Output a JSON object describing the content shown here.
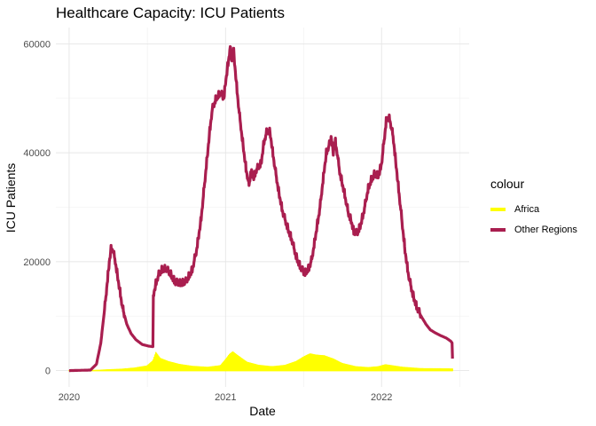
{
  "chart_data": {
    "type": "line",
    "title": "Healthcare Capacity: ICU Patients",
    "xlabel": "Date",
    "ylabel": "ICU Patients",
    "x_type": "date",
    "xlim": [
      "2019-12-01",
      "2022-07-25"
    ],
    "ylim": [
      -3000,
      63000
    ],
    "x_ticks": [
      "2020",
      "2021",
      "2022"
    ],
    "x_tick_dates": [
      "2020-01-01",
      "2021-01-01",
      "2022-01-01"
    ],
    "y_ticks": [
      0,
      20000,
      40000,
      60000
    ],
    "y_tick_labels": [
      "0",
      "20000",
      "40000",
      "60000"
    ],
    "grid": true,
    "legend_title": "colour",
    "legend_position": "right",
    "series": [
      {
        "name": "Africa",
        "color": "#FFFF00",
        "style": "filled-band",
        "points": [
          [
            "2020-01-01",
            0
          ],
          [
            "2020-02-20",
            0
          ],
          [
            "2020-03-10",
            30
          ],
          [
            "2020-04-01",
            120
          ],
          [
            "2020-05-01",
            200
          ],
          [
            "2020-06-01",
            380
          ],
          [
            "2020-07-01",
            700
          ],
          [
            "2020-07-15",
            1500
          ],
          [
            "2020-07-22",
            2800
          ],
          [
            "2020-08-01",
            1900
          ],
          [
            "2020-08-20",
            1400
          ],
          [
            "2020-09-15",
            950
          ],
          [
            "2020-10-15",
            650
          ],
          [
            "2020-11-20",
            500
          ],
          [
            "2020-12-20",
            750
          ],
          [
            "2021-01-01",
            1700
          ],
          [
            "2021-01-10",
            2500
          ],
          [
            "2021-01-18",
            2900
          ],
          [
            "2021-02-01",
            2200
          ],
          [
            "2021-02-20",
            1300
          ],
          [
            "2021-03-20",
            800
          ],
          [
            "2021-04-20",
            600
          ],
          [
            "2021-05-20",
            800
          ],
          [
            "2021-06-15",
            1400
          ],
          [
            "2021-07-05",
            2200
          ],
          [
            "2021-07-18",
            2600
          ],
          [
            "2021-08-01",
            2400
          ],
          [
            "2021-08-20",
            2300
          ],
          [
            "2021-09-10",
            1800
          ],
          [
            "2021-10-01",
            1100
          ],
          [
            "2021-11-01",
            600
          ],
          [
            "2021-12-01",
            450
          ],
          [
            "2021-12-25",
            600
          ],
          [
            "2022-01-10",
            900
          ],
          [
            "2022-01-25",
            750
          ],
          [
            "2022-02-20",
            500
          ],
          [
            "2022-04-01",
            300
          ],
          [
            "2022-06-16",
            250
          ]
        ]
      },
      {
        "name": "Other Regions",
        "color": "#A91E4F",
        "style": "line",
        "points": [
          [
            "2020-01-01",
            0
          ],
          [
            "2020-02-20",
            100
          ],
          [
            "2020-03-05",
            1200
          ],
          [
            "2020-03-15",
            5000
          ],
          [
            "2020-03-25",
            12000
          ],
          [
            "2020-04-04",
            20000
          ],
          [
            "2020-04-08",
            22300
          ],
          [
            "2020-04-12",
            22300
          ],
          [
            "2020-04-17",
            20500
          ],
          [
            "2020-04-25",
            16500
          ],
          [
            "2020-05-05",
            11500
          ],
          [
            "2020-05-15",
            8500
          ],
          [
            "2020-05-25",
            6800
          ],
          [
            "2020-06-05",
            5700
          ],
          [
            "2020-06-20",
            4800
          ],
          [
            "2020-07-05",
            4500
          ],
          [
            "2020-07-15",
            4400
          ],
          [
            "2020-07-16",
            13800
          ],
          [
            "2020-07-22",
            16000
          ],
          [
            "2020-07-28",
            17500
          ],
          [
            "2020-08-05",
            18500
          ],
          [
            "2020-08-15",
            18700
          ],
          [
            "2020-08-25",
            17800
          ],
          [
            "2020-09-05",
            16200
          ],
          [
            "2020-09-20",
            16000
          ],
          [
            "2020-10-01",
            16400
          ],
          [
            "2020-10-15",
            18500
          ],
          [
            "2020-10-25",
            22000
          ],
          [
            "2020-11-05",
            28000
          ],
          [
            "2020-11-15",
            36000
          ],
          [
            "2020-11-25",
            44000
          ],
          [
            "2020-12-01",
            48000
          ],
          [
            "2020-12-10",
            50000
          ],
          [
            "2020-12-20",
            51000
          ],
          [
            "2020-12-28",
            50000
          ],
          [
            "2021-01-01",
            53000
          ],
          [
            "2021-01-08",
            57000
          ],
          [
            "2021-01-12",
            59500
          ],
          [
            "2021-01-15",
            57000
          ],
          [
            "2021-01-20",
            58500
          ],
          [
            "2021-01-25",
            54000
          ],
          [
            "2021-02-01",
            48000
          ],
          [
            "2021-02-10",
            42000
          ],
          [
            "2021-02-18",
            37000
          ],
          [
            "2021-02-25",
            34000
          ],
          [
            "2021-03-01",
            36500
          ],
          [
            "2021-03-08",
            35500
          ],
          [
            "2021-03-15",
            37000
          ],
          [
            "2021-03-25",
            38000
          ],
          [
            "2021-04-01",
            42000
          ],
          [
            "2021-04-08",
            44000
          ],
          [
            "2021-04-15",
            43800
          ],
          [
            "2021-04-25",
            38000
          ],
          [
            "2021-05-05",
            33000
          ],
          [
            "2021-05-15",
            29000
          ],
          [
            "2021-05-25",
            26500
          ],
          [
            "2021-06-05",
            24000
          ],
          [
            "2021-06-15",
            21000
          ],
          [
            "2021-06-25",
            19000
          ],
          [
            "2021-07-05",
            17800
          ],
          [
            "2021-07-15",
            18800
          ],
          [
            "2021-07-22",
            20500
          ],
          [
            "2021-08-01",
            25500
          ],
          [
            "2021-08-10",
            30000
          ],
          [
            "2021-08-20",
            37000
          ],
          [
            "2021-08-25",
            40000
          ],
          [
            "2021-09-01",
            41500
          ],
          [
            "2021-09-05",
            43000
          ],
          [
            "2021-09-10",
            40000
          ],
          [
            "2021-09-15",
            42000
          ],
          [
            "2021-09-20",
            39500
          ],
          [
            "2021-09-25",
            36500
          ],
          [
            "2021-10-05",
            33000
          ],
          [
            "2021-10-15",
            29000
          ],
          [
            "2021-10-22",
            27500
          ],
          [
            "2021-10-28",
            25500
          ],
          [
            "2021-11-05",
            25200
          ],
          [
            "2021-11-12",
            26500
          ],
          [
            "2021-11-20",
            29000
          ],
          [
            "2021-12-01",
            33500
          ],
          [
            "2021-12-08",
            35000
          ],
          [
            "2021-12-15",
            36000
          ],
          [
            "2021-12-25",
            35800
          ],
          [
            "2022-01-01",
            38000
          ],
          [
            "2022-01-08",
            43000
          ],
          [
            "2022-01-13",
            46500
          ],
          [
            "2022-01-20",
            46200
          ],
          [
            "2022-01-28",
            43000
          ],
          [
            "2022-02-05",
            37000
          ],
          [
            "2022-02-15",
            29500
          ],
          [
            "2022-02-25",
            22000
          ],
          [
            "2022-03-05",
            17500
          ],
          [
            "2022-03-15",
            14000
          ],
          [
            "2022-03-25",
            11500
          ],
          [
            "2022-04-05",
            9800
          ],
          [
            "2022-04-15",
            8500
          ],
          [
            "2022-04-25",
            7500
          ],
          [
            "2022-05-05",
            7000
          ],
          [
            "2022-05-20",
            6400
          ],
          [
            "2022-06-01",
            6000
          ],
          [
            "2022-06-12",
            5400
          ],
          [
            "2022-06-15",
            5100
          ],
          [
            "2022-06-16",
            2200
          ]
        ]
      }
    ]
  }
}
